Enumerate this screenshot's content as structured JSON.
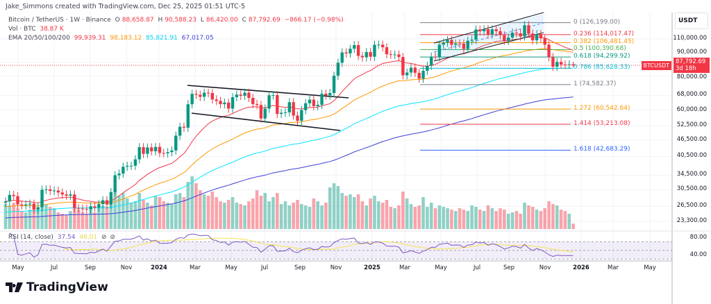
{
  "attribution": "Jake_Simmons created with TradingView.com, Dec 25, 2025 01:51 UTC-5",
  "legend": {
    "symbol": "Bitcoin / TetherUS · 1W · Binance",
    "o_label": "O",
    "o": "88,658.87",
    "h_label": "H",
    "h": "90,588.23",
    "l_label": "L",
    "l": "86,420.00",
    "c_label": "C",
    "c": "87,792.69",
    "change": "−866.17 (−0.98%)",
    "vol_label": "Vol · BTC",
    "vol": "38.87 K",
    "ema_label": "EMA 20/50/100/200",
    "ema20": "99,939.31",
    "ema50": "98,183.12",
    "ema100": "85,821.91",
    "ema200": "67,017.05"
  },
  "colors": {
    "up": "#089981",
    "down": "#f23645",
    "ema20": "#f23645",
    "ema50": "#ff9800",
    "ema100": "#00e5ff",
    "ema200": "#3d3dd9",
    "rsi": "#7e57c2",
    "rsi_ma": "#f5e350"
  },
  "price_axis": {
    "currency": "USDT",
    "ticks": [
      "110,000.00",
      "90,000.00",
      "80,000.00",
      "68,000.00",
      "60,000.00",
      "52,500.00",
      "46,500.00",
      "40,500.00",
      "34,500.00",
      "30,500.00",
      "26,500.00",
      "23,300.00"
    ],
    "tick_values": [
      110000,
      90000,
      80000,
      68000,
      60000,
      52500,
      46500,
      40500,
      34500,
      30500,
      26500,
      23300
    ],
    "scale": "log"
  },
  "last_price": {
    "symbol": "BTCUSDT",
    "price": "87,792.69",
    "countdown": "3d 18h"
  },
  "rsi": {
    "label": "RSI (14, close)",
    "value": "37.54",
    "ma": "46.01",
    "ticks": [
      "80.00",
      "40.00"
    ],
    "icons": [
      "eye-off-icon",
      "eye-off-icon"
    ]
  },
  "x_axis": {
    "labels": [
      "May",
      "Jul",
      "Sep",
      "Nov",
      "2024",
      "Mar",
      "May",
      "Jul",
      "Sep",
      "Nov",
      "2025",
      "Mar",
      "May",
      "Jul",
      "Sep",
      "Nov",
      "2026",
      "Mar",
      "May"
    ]
  },
  "fib_levels": [
    {
      "label": "0 (126,199.00)",
      "value": 126199,
      "color": "#787b86"
    },
    {
      "label": "0.236 (114,017.47)",
      "value": 114017.47,
      "color": "#f23645"
    },
    {
      "label": "0.382 (106,481.45)",
      "value": 106481.45,
      "color": "#ff9800"
    },
    {
      "label": "0.5 (100,390.68)",
      "value": 100390.68,
      "color": "#4caf50"
    },
    {
      "label": "0.618 (94,299.92)",
      "value": 94299.92,
      "color": "#089981"
    },
    {
      "label": "0.786 (85,628.33)",
      "value": 85628.33,
      "color": "#00bcd4"
    },
    {
      "label": "1 (74,582.37)",
      "value": 74582.37,
      "color": "#787b86"
    },
    {
      "label": "1.272 (60,542.64)",
      "value": 60542.64,
      "color": "#ff9800"
    },
    {
      "label": "1.414 (53,213.08)",
      "value": 53213.08,
      "color": "#f23645"
    },
    {
      "label": "1.618 (42,683.29)",
      "value": 42683.29,
      "color": "#2962ff"
    }
  ],
  "brand": "TradingView",
  "chart_data": {
    "type": "candlestick",
    "interval": "1W",
    "first_week": "2023-04-17",
    "last_week": "2025-12-22",
    "last_candle": {
      "open": 88658.87,
      "high": 90588.23,
      "low": 86420.0,
      "close": 87792.69
    },
    "closes": [
      27600,
      29200,
      28900,
      26900,
      26700,
      26900,
      27100,
      25800,
      26300,
      30500,
      30600,
      30200,
      30300,
      29800,
      29300,
      29000,
      29300,
      26100,
      26000,
      25900,
      25800,
      26500,
      26200,
      27000,
      27900,
      26900,
      29900,
      34500,
      35000,
      37100,
      37400,
      37400,
      39500,
      43800,
      41400,
      43700,
      42300,
      43900,
      41700,
      41600,
      42000,
      42600,
      48300,
      52100,
      51700,
      63100,
      68900,
      68400,
      67200,
      69600,
      69400,
      65700,
      64900,
      63100,
      64000,
      60800,
      67000,
      68500,
      67800,
      69600,
      66600,
      63200,
      62700,
      55900,
      60800,
      68100,
      68200,
      58100,
      58700,
      58900,
      64200,
      57300,
      54800,
      60000,
      63600,
      65600,
      62100,
      62800,
      69000,
      68000,
      69400,
      80400,
      89800,
      98000,
      97200,
      101100,
      104300,
      95200,
      94000,
      98300,
      94500,
      104600,
      104700,
      102400,
      96500,
      96100,
      96300,
      94300,
      80700,
      82600,
      86100,
      82400,
      78400,
      83800,
      87500,
      94600,
      94300,
      104700,
      106500,
      109000,
      104600,
      105700,
      105600,
      100900,
      108300,
      109200,
      119100,
      117300,
      119400,
      114200,
      119300,
      117400,
      113500,
      108300,
      111200,
      116000,
      115300,
      112200,
      123500,
      115000,
      108600,
      114500,
      110500,
      104700,
      94200,
      86800,
      90400,
      88400,
      88200,
      88600,
      87792.69
    ],
    "volumes_k": [
      180,
      170,
      190,
      150,
      130,
      120,
      140,
      170,
      150,
      210,
      180,
      160,
      150,
      120,
      110,
      100,
      130,
      220,
      140,
      120,
      110,
      140,
      120,
      150,
      170,
      160,
      230,
      280,
      240,
      260,
      220,
      190,
      200,
      260,
      210,
      190,
      170,
      240,
      230,
      200,
      190,
      180,
      250,
      260,
      230,
      340,
      380,
      330,
      280,
      250,
      240,
      270,
      230,
      200,
      190,
      210,
      230,
      190,
      180,
      170,
      200,
      220,
      280,
      240,
      260,
      200,
      230,
      260,
      180,
      200,
      170,
      190,
      210,
      180,
      170,
      160,
      220,
      200,
      170,
      190,
      300,
      330,
      310,
      260,
      240,
      250,
      230,
      250,
      200,
      170,
      220,
      240,
      200,
      190,
      210,
      160,
      150,
      170,
      270,
      220,
      180,
      160,
      170,
      230,
      160,
      190,
      150,
      170,
      160,
      150,
      140,
      130,
      150,
      140,
      130,
      170,
      160,
      140,
      130,
      170,
      150,
      130,
      150,
      140,
      110,
      120,
      130,
      110,
      190,
      170,
      160,
      140,
      130,
      150,
      200,
      180,
      170,
      140,
      130,
      110,
      38.87
    ],
    "ema_periods": [
      20,
      50,
      100,
      200
    ],
    "rsi_period": 14
  }
}
